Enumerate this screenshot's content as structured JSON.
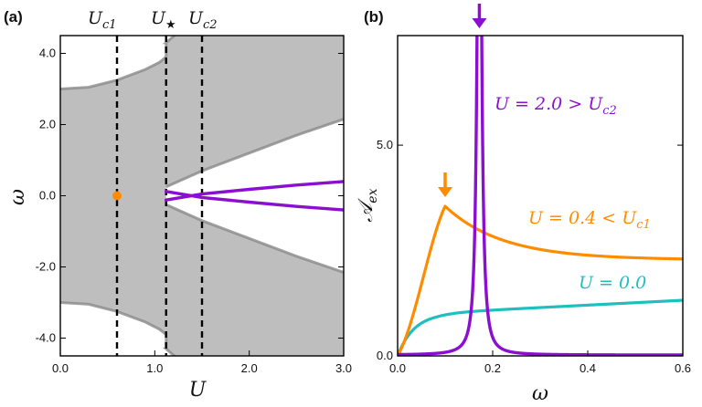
{
  "colors": {
    "purple": "#8B0FD0",
    "orange": "#FF8C00",
    "teal": "#1FBFBF",
    "band_fill": "#BEBEBE",
    "band_edge": "#8A8A8A",
    "axis": "#000000"
  },
  "chart_data": [
    {
      "panel": "(a)",
      "type": "area",
      "xlabel": "U",
      "ylabel": "ω",
      "xlim": [
        0.0,
        3.0
      ],
      "ylim": [
        -4.5,
        4.5
      ],
      "xticks": [
        "0.0",
        "1.0",
        "2.0",
        "3.0"
      ],
      "yticks": [
        "-4.0",
        "-2.0",
        "0.0",
        "2.0",
        "4.0"
      ],
      "critical_lines": [
        {
          "name": "Uc1",
          "label_main": "U",
          "label_sub": "c1",
          "x": 0.6
        },
        {
          "name": "Ustar",
          "label_main": "U",
          "label_sub": "★",
          "x": 1.12
        },
        {
          "name": "Uc2",
          "label_main": "U",
          "label_sub": "c2",
          "x": 1.5
        }
      ],
      "marker": {
        "x": 0.6,
        "y": 0.0,
        "color": "orange"
      },
      "bands": {
        "outer_edge_before_Ustar": [
          [
            0.0,
            3.0
          ],
          [
            0.3,
            3.05
          ],
          [
            0.6,
            3.25
          ],
          [
            0.9,
            3.55
          ],
          [
            1.05,
            3.75
          ],
          [
            1.12,
            3.9
          ]
        ],
        "outer_edge_after_Ustar": [
          [
            1.12,
            4.3
          ],
          [
            1.25,
            4.6
          ]
        ],
        "inner_edge_after_Ustar": [
          [
            1.12,
            0.25
          ],
          [
            1.5,
            0.7
          ],
          [
            2.0,
            1.2
          ],
          [
            2.5,
            1.7
          ],
          [
            3.0,
            2.15
          ]
        ]
      },
      "series": [
        {
          "name": "bound-state-upper",
          "color": "purple",
          "x": [
            1.12,
            1.5,
            2.0,
            2.5,
            3.0
          ],
          "y": [
            -0.12,
            0.05,
            0.18,
            0.3,
            0.4
          ]
        },
        {
          "name": "bound-state-lower",
          "color": "purple",
          "x": [
            1.12,
            1.5,
            2.0,
            2.5,
            3.0
          ],
          "y": [
            0.12,
            -0.05,
            -0.18,
            -0.3,
            -0.4
          ]
        }
      ]
    },
    {
      "panel": "(b)",
      "type": "line",
      "xlabel": "ω",
      "ylabel": "𝒜",
      "ylabel_sub": "ex",
      "xlim": [
        0.0,
        0.6
      ],
      "ylim": [
        0.0,
        7.6
      ],
      "xticks": [
        "0.0",
        "0.2",
        "0.4",
        "0.6"
      ],
      "yticks": [
        "0.0",
        "5.0"
      ],
      "series": [
        {
          "name": "U=2.0>Uc2",
          "color": "purple",
          "label": "U = 2.0 > U",
          "label_sub": "c2",
          "peak_x": 0.172,
          "peak_y": 7.6
        },
        {
          "name": "U=0.4<Uc1",
          "color": "orange",
          "label": "U = 0.4 < U",
          "label_sub": "c1",
          "peak_x": 0.1,
          "peak_y": 3.55,
          "end_y": 2.3
        },
        {
          "name": "U=0.0",
          "color": "teal",
          "label": "U = 0.0",
          "end_y": 1.32
        }
      ],
      "arrows": [
        {
          "x": 0.172,
          "color": "purple"
        },
        {
          "x": 0.1,
          "color": "orange"
        }
      ]
    }
  ]
}
